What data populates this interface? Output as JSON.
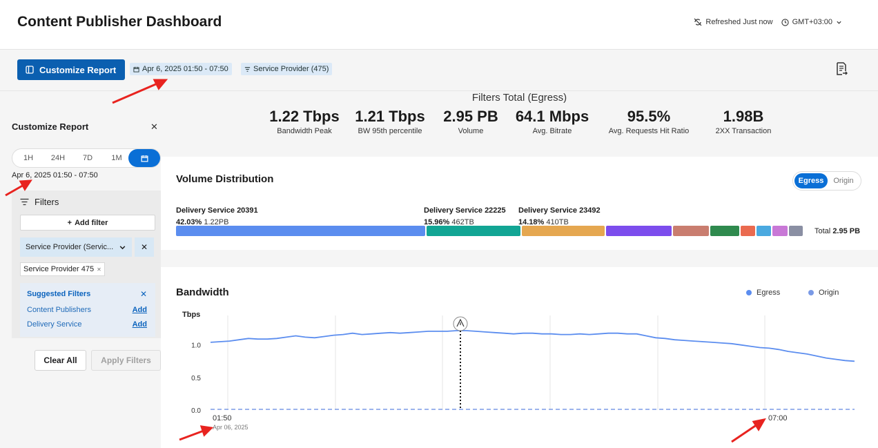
{
  "header": {
    "title": "Content Publisher Dashboard",
    "refreshed": "Refreshed Just now",
    "timezone": "GMT+03:00"
  },
  "toolbar": {
    "customize_label": "Customize Report",
    "date_chip": "Apr 6, 2025 01:50 - 07:50",
    "provider_chip": "Service Provider (475)"
  },
  "sidebar": {
    "title": "Customize Report",
    "ranges": [
      "1H",
      "24H",
      "7D",
      "1M"
    ],
    "date": "Apr 6, 2025 01:50 - 07:50",
    "filters_label": "Filters",
    "add_filter": "Add filter",
    "provider_select": "Service Provider (Servic...",
    "provider_value": "Service Provider 475",
    "suggested_title": "Suggested Filters",
    "suggested": [
      {
        "label": "Content Publishers",
        "action": "Add"
      },
      {
        "label": "Delivery Service",
        "action": "Add"
      }
    ],
    "clear_all": "Clear All",
    "apply": "Apply Filters"
  },
  "stats": {
    "title": "Filters Total (Egress)",
    "items": [
      {
        "value": "1.22 Tbps",
        "label": "Bandwidth Peak"
      },
      {
        "value": "1.21 Tbps",
        "label": "BW 95th percentile"
      },
      {
        "value": "2.95 PB",
        "label": "Volume"
      },
      {
        "value": "64.1 Mbps",
        "label": "Avg. Bitrate"
      },
      {
        "value": "95.5%",
        "label": "Avg. Requests Hit Ratio"
      },
      {
        "value": "1.98B",
        "label": "2XX Transaction"
      }
    ]
  },
  "volume": {
    "title": "Volume Distribution",
    "toggle_on": "Egress",
    "toggle_off": "Origin",
    "services": [
      {
        "name": "Delivery Service 20391",
        "pct": "42.03%",
        "size": "1.22PB"
      },
      {
        "name": "Delivery Service 22225",
        "pct": "15.96%",
        "size": "462TB"
      },
      {
        "name": "Delivery Service 23492",
        "pct": "14.18%",
        "size": "410TB"
      }
    ],
    "segments": [
      {
        "share": 42.03,
        "color": "#5b8def"
      },
      {
        "share": 15.96,
        "color": "#12a594"
      },
      {
        "share": 14.18,
        "color": "#e5a750"
      },
      {
        "share": 11.2,
        "color": "#7c4ded"
      },
      {
        "share": 6.3,
        "color": "#c97d6f"
      },
      {
        "share": 5.0,
        "color": "#2f8a4e"
      },
      {
        "share": 2.7,
        "color": "#ea6a4f"
      },
      {
        "share": 2.7,
        "color": "#4aa9e0"
      },
      {
        "share": 2.7,
        "color": "#c878d6"
      },
      {
        "share": 2.6,
        "color": "#8a8fa3"
      }
    ],
    "total_label": "Total",
    "total_value": "2.95 PB"
  },
  "bandwidth": {
    "title": "Bandwidth",
    "legend": [
      {
        "name": "Egress",
        "color": "#5b8def"
      },
      {
        "name": "Origin",
        "color": "#7a9ae6"
      }
    ],
    "chart_data": {
      "type": "line",
      "ylabel": "Tbps",
      "ylim": [
        0,
        1.4
      ],
      "yticks": [
        "1.0",
        "0.5",
        "0.0"
      ],
      "xticks": [
        {
          "label": "01:50",
          "sub": "Apr 06, 2025"
        },
        {
          "label": "07:00",
          "sub": ""
        }
      ],
      "series": [
        {
          "name": "Egress",
          "color": "#5b8def",
          "values": [
            1.04,
            1.05,
            1.06,
            1.08,
            1.1,
            1.09,
            1.09,
            1.1,
            1.12,
            1.14,
            1.12,
            1.11,
            1.13,
            1.15,
            1.16,
            1.18,
            1.16,
            1.17,
            1.18,
            1.19,
            1.18,
            1.19,
            1.2,
            1.21,
            1.21,
            1.21,
            1.22,
            1.22,
            1.21,
            1.2,
            1.19,
            1.18,
            1.17,
            1.18,
            1.18,
            1.17,
            1.17,
            1.16,
            1.16,
            1.17,
            1.16,
            1.17,
            1.18,
            1.18,
            1.17,
            1.17,
            1.14,
            1.11,
            1.1,
            1.08,
            1.07,
            1.06,
            1.05,
            1.04,
            1.03,
            1.02,
            1.0,
            0.98,
            0.96,
            0.95,
            0.93,
            0.9,
            0.88,
            0.86,
            0.83,
            0.8,
            0.78,
            0.76,
            0.75
          ]
        },
        {
          "name": "Origin",
          "color": "#7a9ae6",
          "values": [
            0.01,
            0.01,
            0.01,
            0.01,
            0.01,
            0.01,
            0.01,
            0.01,
            0.01,
            0.01
          ]
        }
      ]
    }
  }
}
